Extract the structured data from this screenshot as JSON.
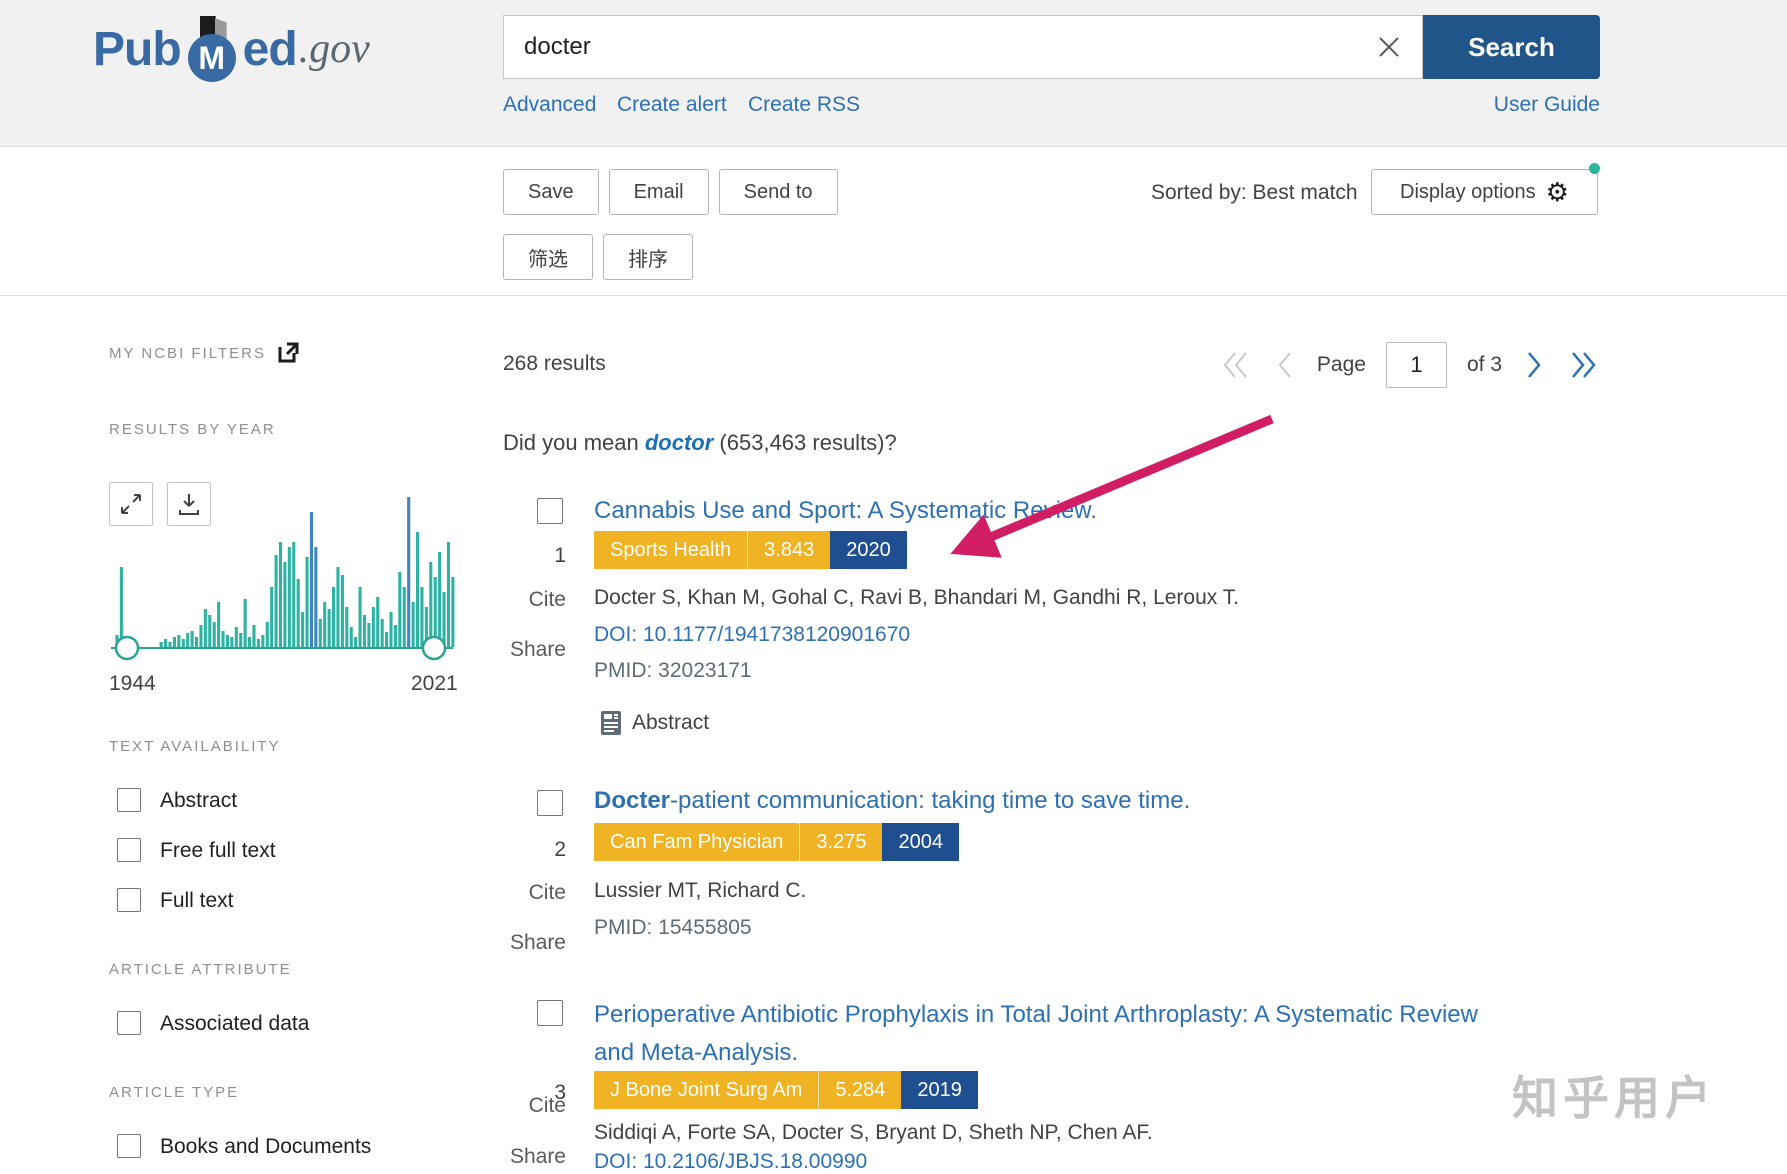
{
  "header": {
    "logo": {
      "pub": "Pub",
      "m": "M",
      "ed": "ed",
      "gov": ".gov"
    },
    "search": {
      "value": "docter",
      "button": "Search"
    },
    "links": {
      "advanced": "Advanced",
      "create_alert": "Create alert",
      "create_rss": "Create RSS",
      "user_guide": "User Guide"
    }
  },
  "toolbar": {
    "save": "Save",
    "email": "Email",
    "send_to": "Send to",
    "filter_cn": "筛选",
    "sort_cn": "排序",
    "sorted_by": "Sorted by: Best match",
    "display_options": "Display options",
    "gear_icon": "⚙"
  },
  "sidebar": {
    "my_ncbi_filters": "MY NCBI FILTERS",
    "results_by_year": {
      "title": "RESULTS BY YEAR",
      "start_year": "1944",
      "end_year": "2021",
      "bars": [
        0,
        12,
        80,
        0,
        0,
        0,
        0,
        0,
        0,
        0,
        0,
        5,
        8,
        5,
        10,
        12,
        8,
        14,
        16,
        10,
        22,
        38,
        32,
        25,
        45,
        16,
        12,
        10,
        20,
        14,
        48,
        10,
        22,
        8,
        12,
        25,
        60,
        92,
        105,
        85,
        100,
        105,
        68,
        35,
        90,
        135,
        100,
        28,
        45,
        38,
        60,
        80,
        72,
        40,
        20,
        10,
        60,
        32,
        24,
        40,
        50,
        28,
        15,
        35,
        22,
        75,
        60,
        150,
        45,
        115,
        60,
        40,
        85,
        70,
        95,
        55,
        105,
        70
      ],
      "highlighted_indices": [
        45,
        46,
        67
      ]
    },
    "sections": [
      {
        "title": "TEXT AVAILABILITY",
        "options": [
          "Abstract",
          "Free full text",
          "Full text"
        ]
      },
      {
        "title": "ARTICLE ATTRIBUTE",
        "options": [
          "Associated data"
        ]
      },
      {
        "title": "ARTICLE TYPE",
        "options": [
          "Books and Documents"
        ]
      }
    ]
  },
  "results_header": {
    "count": "268 results",
    "pagination": {
      "page_label": "Page",
      "page_value": "1",
      "of_label": "of 3"
    }
  },
  "did_you_mean": {
    "prefix": "Did you mean ",
    "term": "doctor",
    "suffix": " (653,463 results)?"
  },
  "labels": {
    "cite": "Cite",
    "share": "Share",
    "abstract": "Abstract"
  },
  "results": [
    {
      "number": "1",
      "title": "Cannabis Use and Sport: A Systematic Review.",
      "journal": "Sports Health",
      "impact": "3.843",
      "year": "2020",
      "authors": "Docter S, Khan M, Gohal C, Ravi B, Bhandari M, Gandhi R, Leroux T.",
      "doi": "DOI: 10.1177/1941738120901670",
      "pmid": "PMID: 32023171"
    },
    {
      "number": "2",
      "title_bold": "Docter",
      "title_rest": "-patient communication: taking time to save time.",
      "journal": "Can Fam Physician",
      "impact": "3.275",
      "year": "2004",
      "authors": "Lussier MT, Richard C.",
      "pmid": "PMID: 15455805"
    },
    {
      "number": "3",
      "title": "Perioperative Antibiotic Prophylaxis in Total Joint Arthroplasty: A Systematic Review and Meta-Analysis.",
      "journal": "J Bone Joint Surg Am",
      "impact": "5.284",
      "year": "2019",
      "authors": "Siddiqi A, Forte SA, Docter S, Bryant D, Sheth NP, Chen AF.",
      "doi": "DOI: 10.2106/JBJS.18.00990"
    }
  ],
  "watermark": "知乎用户",
  "colors": {
    "search_button": "#20558a",
    "link_blue": "#2d70b3",
    "badge_gold": "#f0b323",
    "badge_navy": "#1f4f90",
    "chart_teal": "#2eb3a3",
    "chart_blue": "#3e86c1",
    "arrow_pink": "#d11d63",
    "notification_dot": "#29b69d"
  }
}
